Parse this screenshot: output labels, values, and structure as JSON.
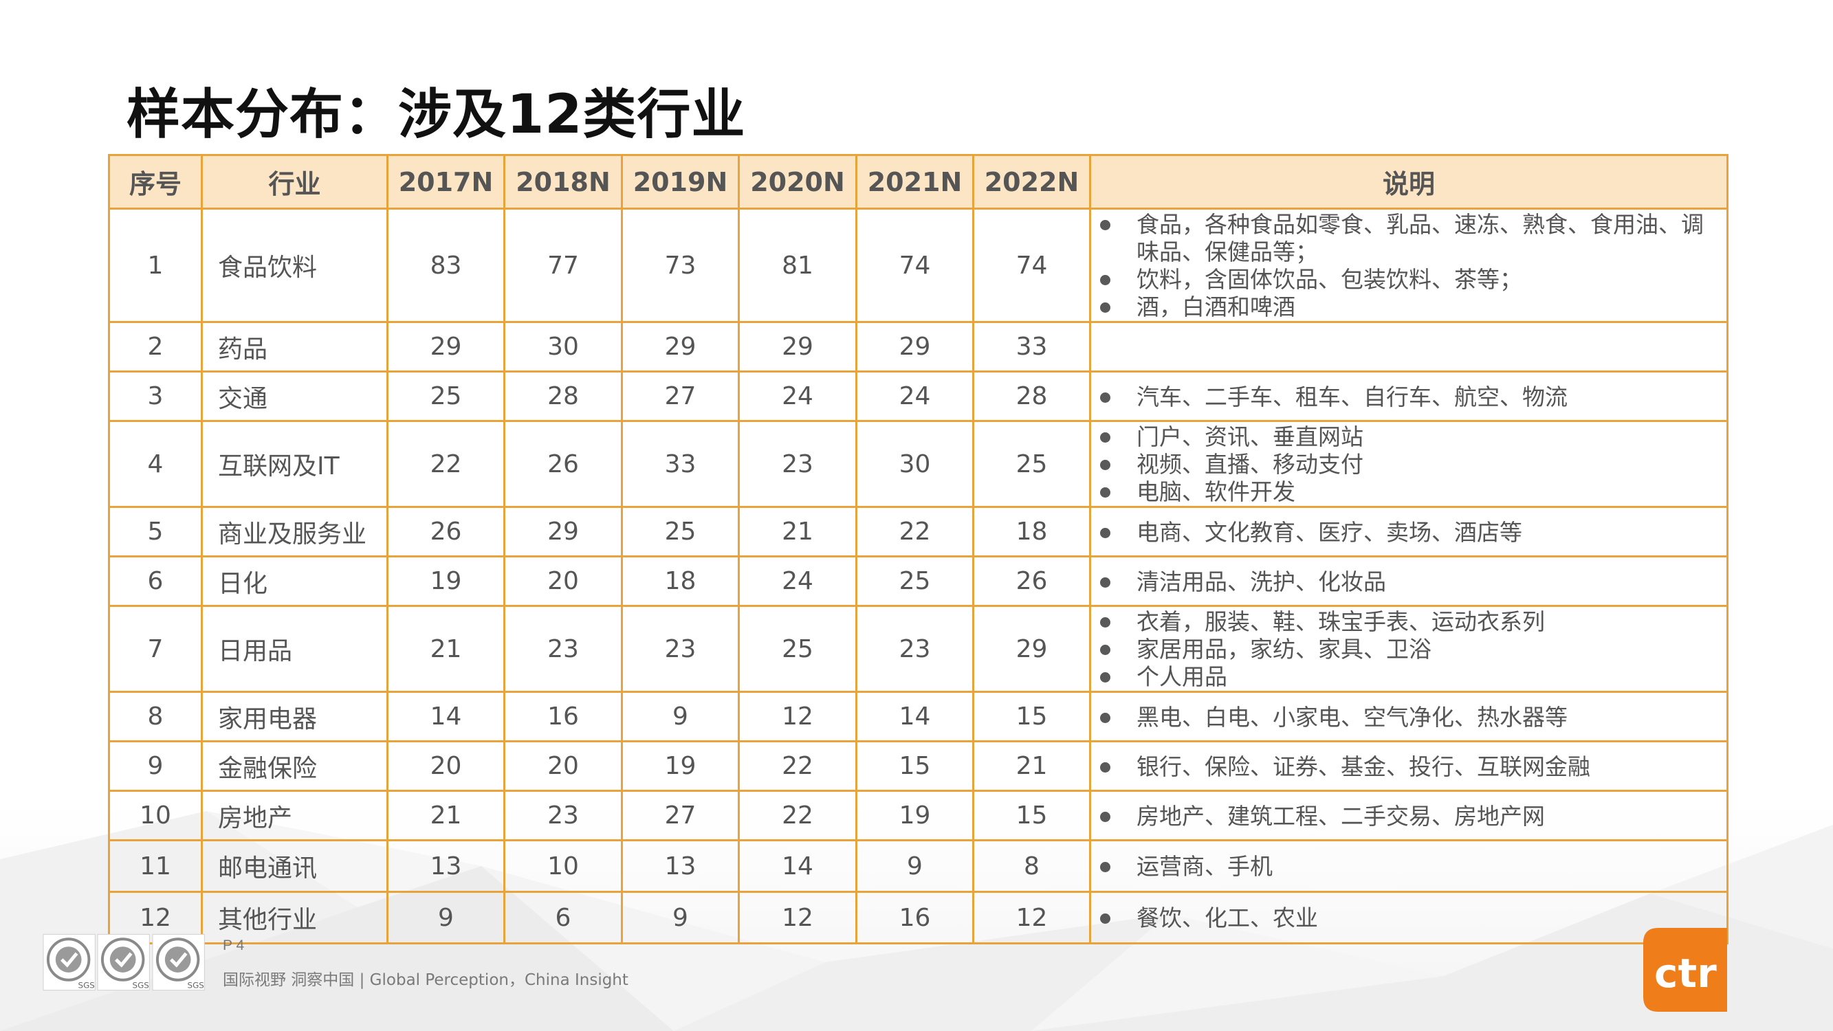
{
  "title": "样本分布：涉及12类行业",
  "table": {
    "headers": [
      "序号",
      "行业",
      "2017N",
      "2018N",
      "2019N",
      "2020N",
      "2021N",
      "2022N",
      "说明"
    ],
    "rows": [
      {
        "no": "1",
        "industry": "食品饮料",
        "y2017": "83",
        "y2018": "77",
        "y2019": "73",
        "y2020": "81",
        "y2021": "74",
        "y2022": "74",
        "notes": [
          "食品，各种食品如零食、乳品、速冻、熟食、食用油、调味品、保健品等；",
          "饮料，含固体饮品、包装饮料、茶等；",
          "酒，白酒和啤酒"
        ]
      },
      {
        "no": "2",
        "industry": "药品",
        "y2017": "29",
        "y2018": "30",
        "y2019": "29",
        "y2020": "29",
        "y2021": "29",
        "y2022": "33",
        "notes": []
      },
      {
        "no": "3",
        "industry": "交通",
        "y2017": "25",
        "y2018": "28",
        "y2019": "27",
        "y2020": "24",
        "y2021": "24",
        "y2022": "28",
        "notes": [
          "汽车、二手车、租车、自行车、航空、物流"
        ]
      },
      {
        "no": "4",
        "industry": "互联网及IT",
        "y2017": "22",
        "y2018": "26",
        "y2019": "33",
        "y2020": "23",
        "y2021": "30",
        "y2022": "25",
        "notes": [
          "门户、资讯、垂直网站",
          "视频、直播、移动支付",
          "电脑、软件开发"
        ]
      },
      {
        "no": "5",
        "industry": "商业及服务业",
        "y2017": "26",
        "y2018": "29",
        "y2019": "25",
        "y2020": "21",
        "y2021": "22",
        "y2022": "18",
        "notes": [
          "电商、文化教育、医疗、卖场、酒店等"
        ]
      },
      {
        "no": "6",
        "industry": "日化",
        "y2017": "19",
        "y2018": "20",
        "y2019": "18",
        "y2020": "24",
        "y2021": "25",
        "y2022": "26",
        "notes": [
          "清洁用品、洗护、化妆品"
        ]
      },
      {
        "no": "7",
        "industry": "日用品",
        "y2017": "21",
        "y2018": "23",
        "y2019": "23",
        "y2020": "25",
        "y2021": "23",
        "y2022": "29",
        "notes": [
          "衣着，服装、鞋、珠宝手表、运动衣系列",
          "家居用品，家纺、家具、卫浴",
          "个人用品"
        ]
      },
      {
        "no": "8",
        "industry": "家用电器",
        "y2017": "14",
        "y2018": "16",
        "y2019": "9",
        "y2020": "12",
        "y2021": "14",
        "y2022": "15",
        "notes": [
          "黑电、白电、小家电、空气净化、热水器等"
        ]
      },
      {
        "no": "9",
        "industry": "金融保险",
        "y2017": "20",
        "y2018": "20",
        "y2019": "19",
        "y2020": "22",
        "y2021": "15",
        "y2022": "21",
        "notes": [
          "银行、保险、证券、基金、投行、互联网金融"
        ]
      },
      {
        "no": "10",
        "industry": "房地产",
        "y2017": "21",
        "y2018": "23",
        "y2019": "27",
        "y2020": "22",
        "y2021": "19",
        "y2022": "15",
        "notes": [
          "房地产、建筑工程、二手交易、房地产网"
        ]
      },
      {
        "no": "11",
        "industry": "邮电通讯",
        "y2017": "13",
        "y2018": "10",
        "y2019": "13",
        "y2020": "14",
        "y2021": "9",
        "y2022": "8",
        "notes": [
          "运营商、手机"
        ]
      },
      {
        "no": "12",
        "industry": "其他行业",
        "y2017": "9",
        "y2018": "6",
        "y2019": "9",
        "y2020": "12",
        "y2021": "16",
        "y2022": "12",
        "notes": [
          "餐饮、化工、农业"
        ]
      }
    ]
  },
  "footer": {
    "page": "P 4",
    "tagline": "国际视野 洞察中国 | Global Perception，China Insight"
  },
  "logo": {
    "brand": "ctr",
    "brand_color": "#ef7d1a",
    "cert_label": "SGS"
  },
  "colors": {
    "border": "#e8a33a",
    "header_fill": "#fce5c4",
    "text": "#555555"
  }
}
